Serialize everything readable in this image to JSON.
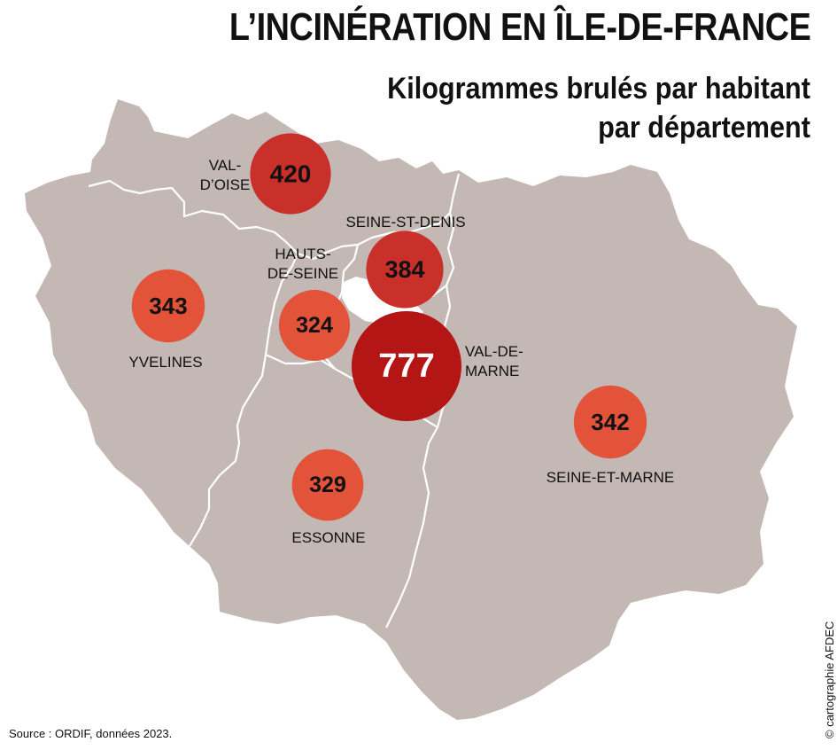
{
  "header": {
    "title": "L’INCINÉRATION EN ÎLE-DE-FRANCE",
    "subtitle_line1": "Kilogrammes brulés par habitant",
    "subtitle_line2": "par département"
  },
  "footer": {
    "source": "Source : ORDIF, données 2023.",
    "credit": "© cartographie AFDEC"
  },
  "colors": {
    "land": "#c3b8b4",
    "border": "#ffffff",
    "low": "#e2533a",
    "mid": "#c9302a",
    "high": "#b41515"
  },
  "departments": [
    {
      "name": "VAL-D’OISE",
      "label_lines": [
        "VAL-",
        "D’OISE"
      ],
      "value": 420
    },
    {
      "name": "SEINE-ST-DENIS",
      "label_lines": [
        "SEINE-ST-DENIS"
      ],
      "value": 384
    },
    {
      "name": "HAUTS-DE-SEINE",
      "label_lines": [
        "HAUTS-",
        "DE-SEINE"
      ],
      "value": 324
    },
    {
      "name": "VAL-DE-MARNE",
      "label_lines": [
        "VAL-DE-",
        "MARNE"
      ],
      "value": 777
    },
    {
      "name": "YVELINES",
      "label_lines": [
        "YVELINES"
      ],
      "value": 343
    },
    {
      "name": "ESSONNE",
      "label_lines": [
        "ESSONNE"
      ],
      "value": 329
    },
    {
      "name": "SEINE-ET-MARNE",
      "label_lines": [
        "SEINE-ET-MARNE"
      ],
      "value": 342
    }
  ]
}
